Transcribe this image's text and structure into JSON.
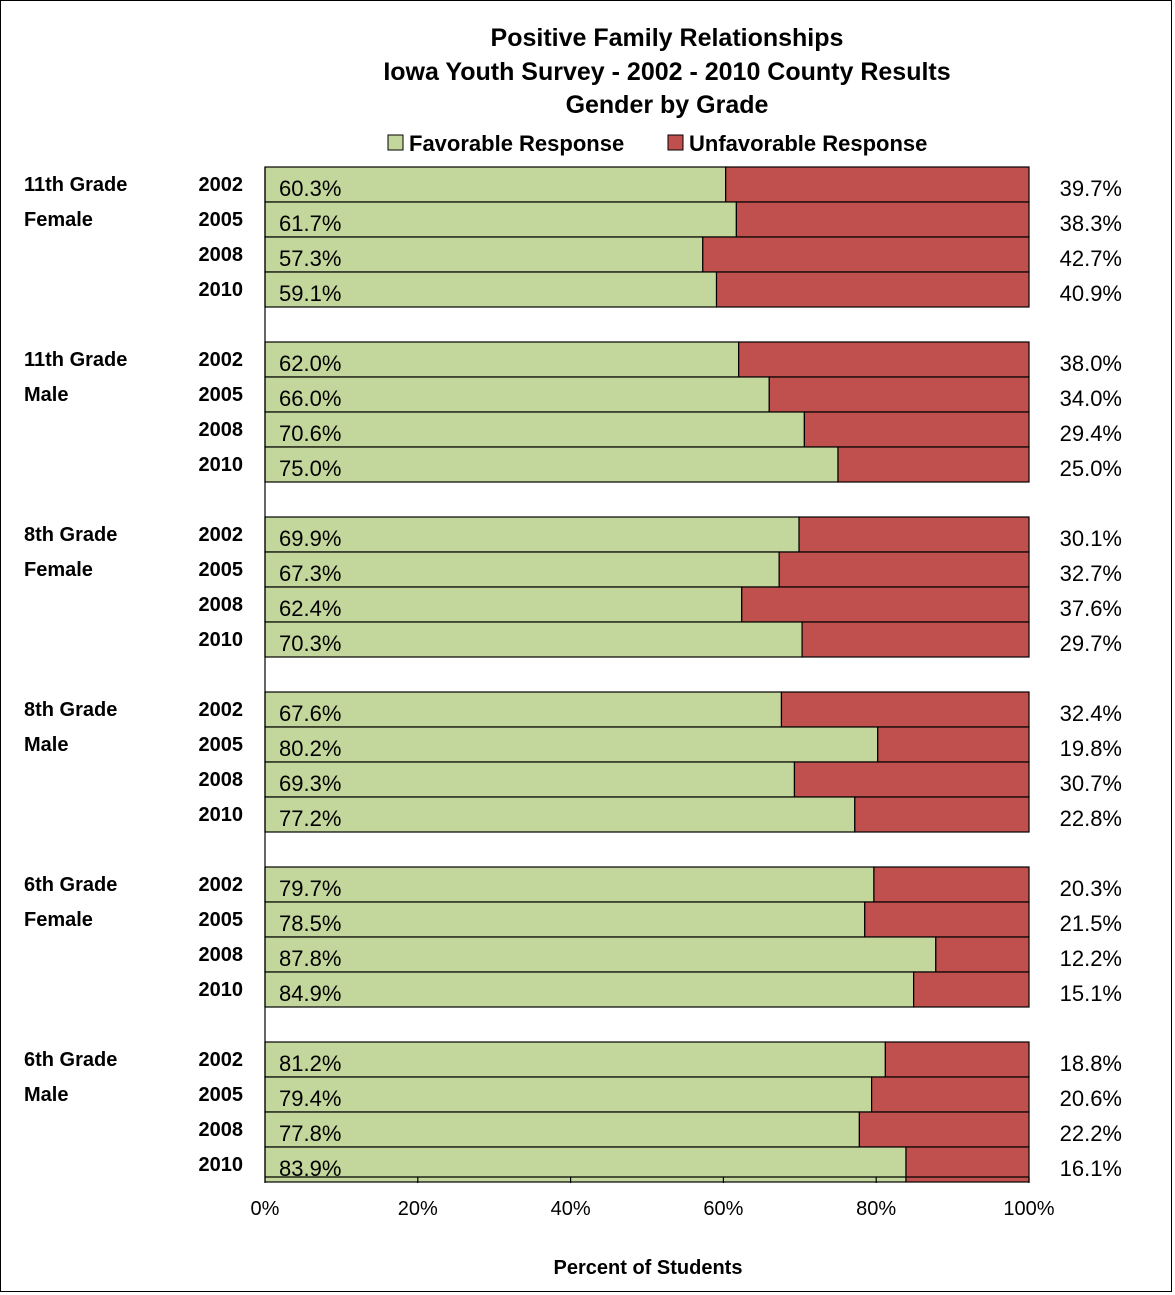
{
  "chart_data": {
    "type": "bar",
    "orientation": "horizontal",
    "stacked": true,
    "title_lines": [
      "Positive Family Relationships",
      "Iowa Youth Survey - 2002 - 2010 County Results",
      "Gender by Grade"
    ],
    "xlabel": "Percent of Students",
    "xlim": [
      0,
      100
    ],
    "x_ticks": [
      "0%",
      "20%",
      "40%",
      "60%",
      "80%",
      "100%"
    ],
    "legend_position": "top",
    "series": [
      {
        "name": "Favorable Response",
        "color": "#c3d69b"
      },
      {
        "name": "Unfavorable Response",
        "color": "#c0504d"
      }
    ],
    "groups": [
      {
        "label_line1": "11th Grade",
        "label_line2": "Female",
        "bars": [
          {
            "year": "2002",
            "favorable": 60.3,
            "unfavorable": 39.7,
            "favorable_label": "60.3%",
            "unfavorable_label": "39.7%"
          },
          {
            "year": "2005",
            "favorable": 61.7,
            "unfavorable": 38.3,
            "favorable_label": "61.7%",
            "unfavorable_label": "38.3%"
          },
          {
            "year": "2008",
            "favorable": 57.3,
            "unfavorable": 42.7,
            "favorable_label": "57.3%",
            "unfavorable_label": "42.7%"
          },
          {
            "year": "2010",
            "favorable": 59.1,
            "unfavorable": 40.9,
            "favorable_label": "59.1%",
            "unfavorable_label": "40.9%"
          }
        ]
      },
      {
        "label_line1": "11th Grade",
        "label_line2": "Male",
        "bars": [
          {
            "year": "2002",
            "favorable": 62.0,
            "unfavorable": 38.0,
            "favorable_label": "62.0%",
            "unfavorable_label": "38.0%"
          },
          {
            "year": "2005",
            "favorable": 66.0,
            "unfavorable": 34.0,
            "favorable_label": "66.0%",
            "unfavorable_label": "34.0%"
          },
          {
            "year": "2008",
            "favorable": 70.6,
            "unfavorable": 29.4,
            "favorable_label": "70.6%",
            "unfavorable_label": "29.4%"
          },
          {
            "year": "2010",
            "favorable": 75.0,
            "unfavorable": 25.0,
            "favorable_label": "75.0%",
            "unfavorable_label": "25.0%"
          }
        ]
      },
      {
        "label_line1": "8th Grade",
        "label_line2": "Female",
        "bars": [
          {
            "year": "2002",
            "favorable": 69.9,
            "unfavorable": 30.1,
            "favorable_label": "69.9%",
            "unfavorable_label": "30.1%"
          },
          {
            "year": "2005",
            "favorable": 67.3,
            "unfavorable": 32.7,
            "favorable_label": "67.3%",
            "unfavorable_label": "32.7%"
          },
          {
            "year": "2008",
            "favorable": 62.4,
            "unfavorable": 37.6,
            "favorable_label": "62.4%",
            "unfavorable_label": "37.6%"
          },
          {
            "year": "2010",
            "favorable": 70.3,
            "unfavorable": 29.7,
            "favorable_label": "70.3%",
            "unfavorable_label": "29.7%"
          }
        ]
      },
      {
        "label_line1": "8th Grade",
        "label_line2": "Male",
        "bars": [
          {
            "year": "2002",
            "favorable": 67.6,
            "unfavorable": 32.4,
            "favorable_label": "67.6%",
            "unfavorable_label": "32.4%"
          },
          {
            "year": "2005",
            "favorable": 80.2,
            "unfavorable": 19.8,
            "favorable_label": "80.2%",
            "unfavorable_label": "19.8%"
          },
          {
            "year": "2008",
            "favorable": 69.3,
            "unfavorable": 30.7,
            "favorable_label": "69.3%",
            "unfavorable_label": "30.7%"
          },
          {
            "year": "2010",
            "favorable": 77.2,
            "unfavorable": 22.8,
            "favorable_label": "77.2%",
            "unfavorable_label": "22.8%"
          }
        ]
      },
      {
        "label_line1": "6th Grade",
        "label_line2": "Female",
        "bars": [
          {
            "year": "2002",
            "favorable": 79.7,
            "unfavorable": 20.3,
            "favorable_label": "79.7%",
            "unfavorable_label": "20.3%"
          },
          {
            "year": "2005",
            "favorable": 78.5,
            "unfavorable": 21.5,
            "favorable_label": "78.5%",
            "unfavorable_label": "21.5%"
          },
          {
            "year": "2008",
            "favorable": 87.8,
            "unfavorable": 12.2,
            "favorable_label": "87.8%",
            "unfavorable_label": "12.2%"
          },
          {
            "year": "2010",
            "favorable": 84.9,
            "unfavorable": 15.1,
            "favorable_label": "84.9%",
            "unfavorable_label": "15.1%"
          }
        ]
      },
      {
        "label_line1": "6th Grade",
        "label_line2": "Male",
        "bars": [
          {
            "year": "2002",
            "favorable": 81.2,
            "unfavorable": 18.8,
            "favorable_label": "81.2%",
            "unfavorable_label": "18.8%"
          },
          {
            "year": "2005",
            "favorable": 79.4,
            "unfavorable": 20.6,
            "favorable_label": "79.4%",
            "unfavorable_label": "20.6%"
          },
          {
            "year": "2008",
            "favorable": 77.8,
            "unfavorable": 22.2,
            "favorable_label": "77.8%",
            "unfavorable_label": "22.2%"
          },
          {
            "year": "2010",
            "favorable": 83.9,
            "unfavorable": 16.1,
            "favorable_label": "83.9%",
            "unfavorable_label": "16.1%"
          }
        ]
      }
    ]
  }
}
